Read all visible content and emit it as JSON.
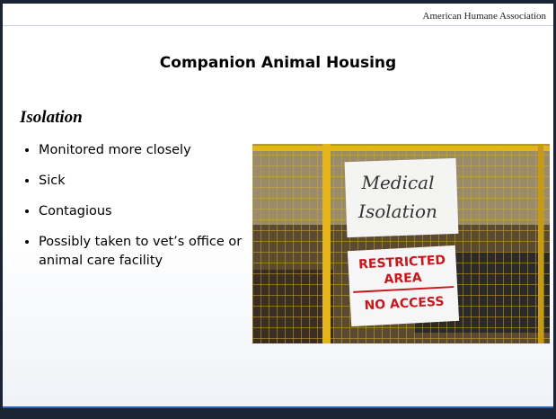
{
  "header": {
    "organization": "American Humane Association"
  },
  "slide": {
    "title": "Companion Animal Housing",
    "section": "Isolation",
    "bullets": [
      "Monitored more closely",
      "Sick",
      "Contagious",
      "Possibly taken to vet’s office or animal care facility"
    ]
  },
  "photo": {
    "sign_top": [
      "Medical",
      "Isolation"
    ],
    "sign_bottom": [
      "RESTRICTED",
      "AREA",
      "NO ACCESS"
    ]
  }
}
